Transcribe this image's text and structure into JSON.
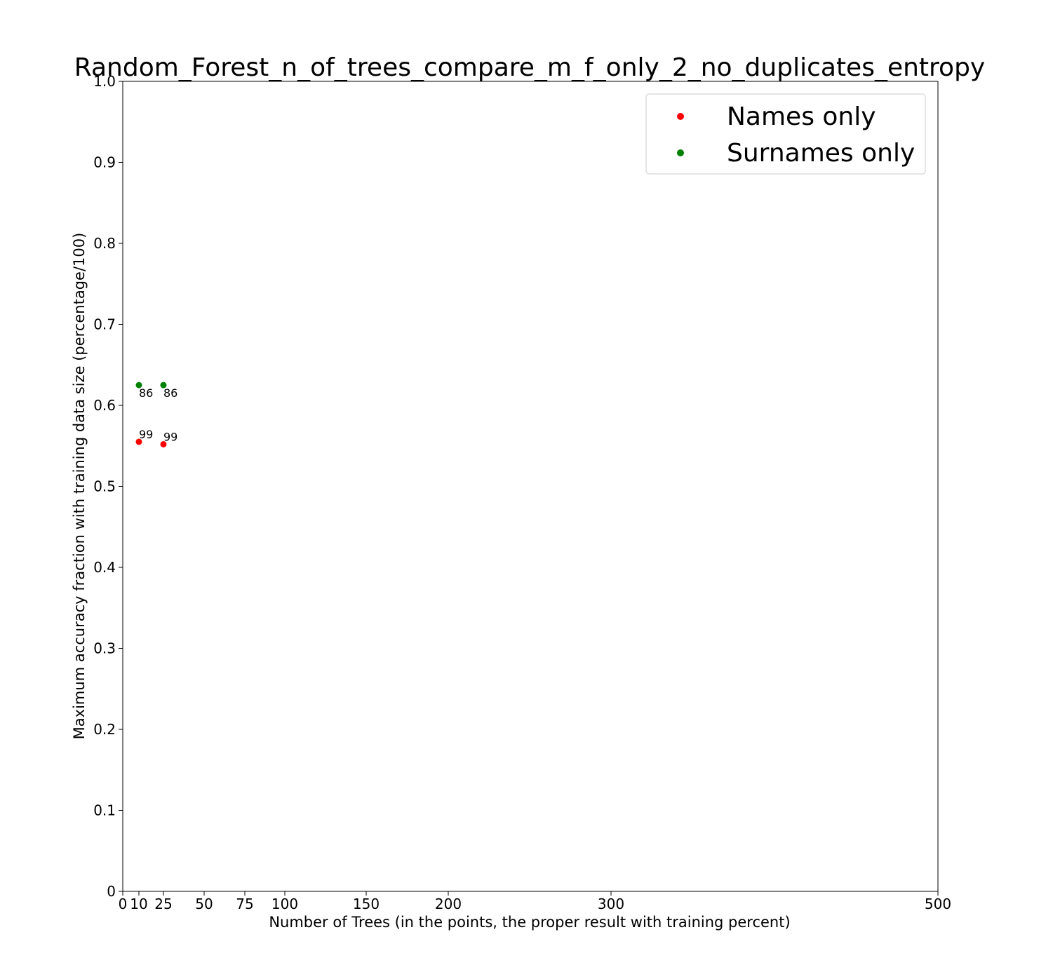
{
  "chart_data": {
    "type": "scatter",
    "title": "Random_Forest_n_of_trees_compare_m_f_only_2_no_duplicates_entropy",
    "xlabel": "Number of Trees (in the points, the proper result with training percent)",
    "ylabel": "Maximum accuracy fraction with training data size (percentage/100)",
    "xlim": [
      0,
      500
    ],
    "ylim": [
      0,
      1.0
    ],
    "x_ticks": [
      {
        "value": 0,
        "label": "0"
      },
      {
        "value": 10,
        "label": "10"
      },
      {
        "value": 25,
        "label": "25"
      },
      {
        "value": 50,
        "label": "50"
      },
      {
        "value": 75,
        "label": "75"
      },
      {
        "value": 100,
        "label": "100"
      },
      {
        "value": 150,
        "label": "150"
      },
      {
        "value": 200,
        "label": "200"
      },
      {
        "value": 300,
        "label": "300"
      },
      {
        "value": 500,
        "label": "500"
      }
    ],
    "y_ticks": [
      {
        "value": 0,
        "label": "0"
      },
      {
        "value": 0.1,
        "label": "0.1"
      },
      {
        "value": 0.2,
        "label": "0.2"
      },
      {
        "value": 0.3,
        "label": "0.3"
      },
      {
        "value": 0.4,
        "label": "0.4"
      },
      {
        "value": 0.5,
        "label": "0.5"
      },
      {
        "value": 0.6,
        "label": "0.6"
      },
      {
        "value": 0.7,
        "label": "0.7"
      },
      {
        "value": 0.8,
        "label": "0.8"
      },
      {
        "value": 0.9,
        "label": "0.9"
      },
      {
        "value": 1.0,
        "label": "1.0"
      }
    ],
    "grid": false,
    "legend": "top-right",
    "series": [
      {
        "name": "Names only",
        "color": "#ff0000",
        "points": [
          {
            "x": 10,
            "y": 0.555,
            "label": "99"
          },
          {
            "x": 25,
            "y": 0.552,
            "label": "99"
          }
        ]
      },
      {
        "name": "Surnames only",
        "color": "#008000",
        "points": [
          {
            "x": 10,
            "y": 0.625,
            "label": "86"
          },
          {
            "x": 25,
            "y": 0.625,
            "label": "86"
          }
        ]
      }
    ]
  }
}
